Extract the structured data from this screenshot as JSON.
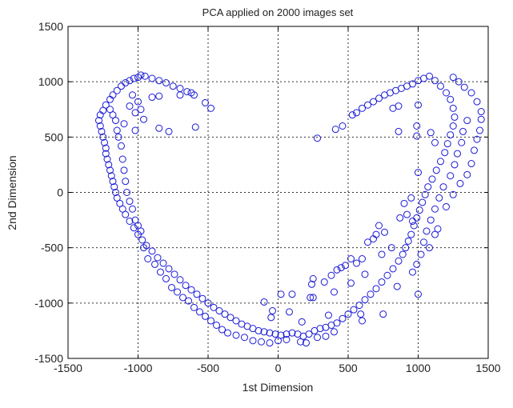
{
  "chart_data": {
    "type": "scatter",
    "title": "PCA applied on 2000 images set",
    "xlabel": "1st Dimension",
    "ylabel": "2nd Dimension",
    "xlim": [
      -1500,
      1500
    ],
    "ylim": [
      -1500,
      1500
    ],
    "xticks": [
      -1500,
      -1000,
      -500,
      0,
      500,
      1000,
      1500
    ],
    "yticks": [
      -1500,
      -1000,
      -500,
      0,
      500,
      1000,
      1500
    ],
    "grid": true,
    "marker": "circle-open",
    "color": "#1a1ad6",
    "points": [
      [
        -600,
        880
      ],
      [
        -620,
        900
      ],
      [
        -650,
        910
      ],
      [
        -700,
        940
      ],
      [
        -750,
        960
      ],
      [
        -800,
        990
      ],
      [
        -850,
        1010
      ],
      [
        -900,
        1030
      ],
      [
        -950,
        1050
      ],
      [
        -980,
        1060
      ],
      [
        -1000,
        1040
      ],
      [
        -1030,
        1030
      ],
      [
        -1060,
        1010
      ],
      [
        -1090,
        990
      ],
      [
        -1120,
        960
      ],
      [
        -1150,
        920
      ],
      [
        -1180,
        880
      ],
      [
        -1200,
        840
      ],
      [
        -1230,
        790
      ],
      [
        -1250,
        740
      ],
      [
        -1270,
        700
      ],
      [
        -1280,
        650
      ],
      [
        -1270,
        600
      ],
      [
        -1260,
        550
      ],
      [
        -1250,
        500
      ],
      [
        -1240,
        450
      ],
      [
        -1230,
        400
      ],
      [
        -1230,
        350
      ],
      [
        -1220,
        300
      ],
      [
        -1210,
        250
      ],
      [
        -1200,
        200
      ],
      [
        -1190,
        150
      ],
      [
        -1180,
        100
      ],
      [
        -1170,
        50
      ],
      [
        -1160,
        0
      ],
      [
        -1150,
        -50
      ],
      [
        -1130,
        -100
      ],
      [
        -1110,
        -150
      ],
      [
        -1090,
        -200
      ],
      [
        -1060,
        -260
      ],
      [
        -1030,
        -320
      ],
      [
        -1000,
        -380
      ],
      [
        -970,
        -430
      ],
      [
        -940,
        -480
      ],
      [
        -900,
        -530
      ],
      [
        -860,
        -590
      ],
      [
        -820,
        -640
      ],
      [
        -780,
        -690
      ],
      [
        -740,
        -740
      ],
      [
        -700,
        -790
      ],
      [
        -660,
        -840
      ],
      [
        -620,
        -880
      ],
      [
        -580,
        -920
      ],
      [
        -540,
        -960
      ],
      [
        -500,
        -1000
      ],
      [
        -460,
        -1040
      ],
      [
        -420,
        -1070
      ],
      [
        -380,
        -1100
      ],
      [
        -340,
        -1130
      ],
      [
        -300,
        -1160
      ],
      [
        -260,
        -1190
      ],
      [
        -220,
        -1210
      ],
      [
        -180,
        -1230
      ],
      [
        -140,
        -1250
      ],
      [
        -100,
        -1260
      ],
      [
        -60,
        -1270
      ],
      [
        -20,
        -1280
      ],
      [
        20,
        -1290
      ],
      [
        60,
        -1280
      ],
      [
        100,
        -1270
      ],
      [
        140,
        -1280
      ],
      [
        180,
        -1300
      ],
      [
        220,
        -1280
      ],
      [
        260,
        -1250
      ],
      [
        300,
        -1230
      ],
      [
        340,
        -1220
      ],
      [
        380,
        -1200
      ],
      [
        420,
        -1180
      ],
      [
        460,
        -1140
      ],
      [
        500,
        -1100
      ],
      [
        540,
        -1060
      ],
      [
        580,
        -1020
      ],
      [
        620,
        -970
      ],
      [
        660,
        -920
      ],
      [
        700,
        -870
      ],
      [
        740,
        -810
      ],
      [
        780,
        -750
      ],
      [
        820,
        -690
      ],
      [
        860,
        -620
      ],
      [
        890,
        -560
      ],
      [
        910,
        -500
      ],
      [
        930,
        -440
      ],
      [
        950,
        -380
      ],
      [
        970,
        -300
      ],
      [
        990,
        -230
      ],
      [
        1010,
        -160
      ],
      [
        1030,
        -90
      ],
      [
        1050,
        -20
      ],
      [
        1070,
        50
      ],
      [
        1100,
        120
      ],
      [
        1130,
        200
      ],
      [
        1160,
        280
      ],
      [
        1190,
        360
      ],
      [
        1210,
        440
      ],
      [
        1230,
        520
      ],
      [
        1250,
        600
      ],
      [
        1260,
        680
      ],
      [
        1250,
        760
      ],
      [
        1230,
        840
      ],
      [
        1200,
        900
      ],
      [
        1160,
        960
      ],
      [
        1120,
        1010
      ],
      [
        1080,
        1050
      ],
      [
        1040,
        1030
      ],
      [
        1000,
        1010
      ],
      [
        960,
        980
      ],
      [
        920,
        960
      ],
      [
        880,
        940
      ],
      [
        840,
        920
      ],
      [
        800,
        900
      ],
      [
        760,
        880
      ],
      [
        720,
        850
      ],
      [
        680,
        820
      ],
      [
        640,
        790
      ],
      [
        600,
        760
      ],
      [
        560,
        720
      ],
      [
        530,
        700
      ],
      [
        -1200,
        750
      ],
      [
        -1180,
        700
      ],
      [
        -1160,
        650
      ],
      [
        -1150,
        560
      ],
      [
        -1140,
        500
      ],
      [
        -1120,
        420
      ],
      [
        -1110,
        300
      ],
      [
        -1100,
        200
      ],
      [
        -1090,
        100
      ],
      [
        -1080,
        0
      ],
      [
        -1060,
        -80
      ],
      [
        -1040,
        -150
      ],
      [
        -1020,
        -250
      ],
      [
        -1000,
        -300
      ],
      [
        -980,
        -350
      ],
      [
        -960,
        -500
      ],
      [
        -930,
        -600
      ],
      [
        -880,
        -650
      ],
      [
        -840,
        -720
      ],
      [
        -800,
        -780
      ],
      [
        -760,
        -860
      ],
      [
        -720,
        -900
      ],
      [
        -680,
        -950
      ],
      [
        -640,
        -980
      ],
      [
        -600,
        -1040
      ],
      [
        -560,
        -1080
      ],
      [
        -520,
        -1120
      ],
      [
        -480,
        -1160
      ],
      [
        -440,
        -1200
      ],
      [
        -400,
        -1240
      ],
      [
        -360,
        -1270
      ],
      [
        -300,
        -1290
      ],
      [
        -240,
        -1310
      ],
      [
        -180,
        -1340
      ],
      [
        -120,
        -1350
      ],
      [
        -60,
        -1360
      ],
      [
        0,
        -1340
      ],
      [
        60,
        -1330
      ],
      [
        160,
        -1350
      ],
      [
        200,
        -1360
      ],
      [
        280,
        -1310
      ],
      [
        340,
        -1300
      ],
      [
        400,
        -1260
      ],
      [
        -1040,
        880
      ],
      [
        -1000,
        820
      ],
      [
        -980,
        750
      ],
      [
        -1020,
        720
      ],
      [
        -960,
        660
      ],
      [
        -1020,
        560
      ],
      [
        -850,
        580
      ],
      [
        -780,
        550
      ],
      [
        -590,
        590
      ],
      [
        -520,
        810
      ],
      [
        -480,
        760
      ],
      [
        -1100,
        620
      ],
      [
        -1060,
        780
      ],
      [
        -900,
        860
      ],
      [
        -850,
        870
      ],
      [
        -700,
        880
      ],
      [
        280,
        490
      ],
      [
        410,
        570
      ],
      [
        460,
        600
      ],
      [
        860,
        550
      ],
      [
        990,
        510
      ],
      [
        990,
        600
      ],
      [
        1000,
        790
      ],
      [
        860,
        780
      ],
      [
        820,
        760
      ],
      [
        1090,
        540
      ],
      [
        1120,
        450
      ],
      [
        1000,
        180
      ],
      [
        950,
        -50
      ],
      [
        920,
        -200
      ],
      [
        900,
        -100
      ],
      [
        870,
        -230
      ],
      [
        960,
        -260
      ],
      [
        1120,
        -380
      ],
      [
        1080,
        -500
      ],
      [
        1140,
        -330
      ],
      [
        1200,
        -130
      ],
      [
        1250,
        -20
      ],
      [
        1300,
        80
      ],
      [
        1350,
        160
      ],
      [
        1380,
        260
      ],
      [
        1400,
        380
      ],
      [
        1420,
        480
      ],
      [
        1440,
        560
      ],
      [
        1450,
        660
      ],
      [
        1450,
        730
      ],
      [
        1420,
        820
      ],
      [
        1380,
        900
      ],
      [
        1330,
        950
      ],
      [
        1290,
        1000
      ],
      [
        1250,
        1040
      ],
      [
        1350,
        650
      ],
      [
        1320,
        550
      ],
      [
        1310,
        450
      ],
      [
        1280,
        350
      ],
      [
        1260,
        250
      ],
      [
        1230,
        150
      ],
      [
        1180,
        50
      ],
      [
        1150,
        -50
      ],
      [
        1120,
        -150
      ],
      [
        1090,
        -250
      ],
      [
        1060,
        -350
      ],
      [
        1040,
        -450
      ],
      [
        1020,
        -560
      ],
      [
        990,
        -650
      ],
      [
        960,
        -720
      ],
      [
        720,
        -300
      ],
      [
        760,
        -360
      ],
      [
        700,
        -380
      ],
      [
        680,
        -420
      ],
      [
        640,
        -450
      ],
      [
        600,
        -600
      ],
      [
        560,
        -640
      ],
      [
        520,
        -600
      ],
      [
        480,
        -660
      ],
      [
        450,
        -680
      ],
      [
        420,
        -700
      ],
      [
        380,
        -750
      ],
      [
        330,
        -810
      ],
      [
        250,
        -780
      ],
      [
        240,
        -830
      ],
      [
        740,
        -560
      ],
      [
        810,
        -500
      ],
      [
        750,
        -1100
      ],
      [
        850,
        -850
      ],
      [
        520,
        -820
      ],
      [
        620,
        -740
      ],
      [
        400,
        -900
      ],
      [
        230,
        -950
      ],
      [
        250,
        -950
      ],
      [
        100,
        -920
      ],
      [
        20,
        -920
      ],
      [
        80,
        -1080
      ],
      [
        -40,
        -1070
      ],
      [
        -100,
        -990
      ],
      [
        -50,
        -1130
      ],
      [
        170,
        -1170
      ],
      [
        360,
        -1110
      ],
      [
        590,
        -1100
      ],
      [
        600,
        -1160
      ],
      [
        1000,
        -920
      ]
    ]
  }
}
